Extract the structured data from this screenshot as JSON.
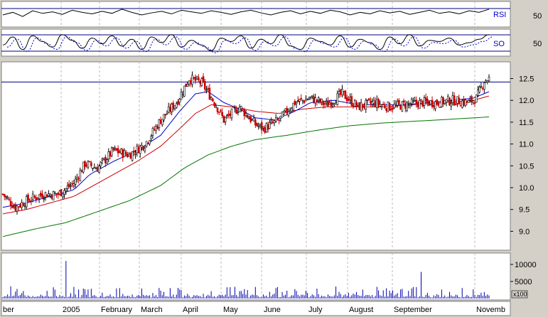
{
  "chart_data": [
    {
      "type": "line",
      "panel": "rsi",
      "label": "RSI",
      "yticks": [
        50
      ],
      "series": [
        {
          "values": [
            55,
            60,
            52,
            63,
            58,
            61,
            56,
            64,
            60,
            57,
            62,
            58,
            66,
            60,
            55,
            59,
            62,
            57,
            64,
            61,
            58,
            63,
            60,
            56,
            61,
            64,
            59,
            55,
            60,
            63,
            57,
            62,
            58,
            64,
            61,
            55,
            60,
            57,
            63,
            59,
            62,
            56,
            60,
            64,
            58,
            61,
            57,
            63,
            60,
            66
          ]
        }
      ]
    },
    {
      "type": "line",
      "panel": "stochastic",
      "label": "SO",
      "yticks": [
        50
      ],
      "series": [
        {
          "values": [
            40,
            75,
            20,
            80,
            55,
            30,
            85,
            60,
            25,
            70,
            45,
            80,
            35,
            65,
            20,
            75,
            50,
            85,
            30,
            60,
            40,
            15,
            70,
            55,
            80,
            25,
            65,
            45,
            85,
            35,
            20,
            70,
            55,
            40,
            80,
            30,
            65,
            50,
            20,
            75,
            45,
            85,
            35,
            60,
            55,
            70,
            40,
            50,
            65,
            85
          ]
        }
      ]
    },
    {
      "type": "candlestick",
      "panel": "price",
      "x_labels": [
        "ber",
        "2005",
        "February",
        "March",
        "April",
        "May",
        "June",
        "July",
        "August",
        "September",
        "Novemb"
      ],
      "y_ticks": [
        9.0,
        9.5,
        10.0,
        10.5,
        11.0,
        11.5,
        12.0,
        12.5
      ],
      "ylim": [
        8.6,
        12.85
      ],
      "horizontal_line": 12.42,
      "close_path": [
        [
          0,
          9.85
        ],
        [
          8,
          9.55
        ],
        [
          15,
          9.7
        ],
        [
          25,
          9.85
        ],
        [
          35,
          9.85
        ],
        [
          45,
          10.1
        ],
        [
          52,
          10.55
        ],
        [
          60,
          10.45
        ],
        [
          70,
          10.85
        ],
        [
          80,
          10.75
        ],
        [
          90,
          11.0
        ],
        [
          100,
          11.55
        ],
        [
          110,
          11.95
        ],
        [
          118,
          12.5
        ],
        [
          126,
          12.4
        ],
        [
          135,
          11.9
        ],
        [
          140,
          11.55
        ],
        [
          150,
          11.85
        ],
        [
          160,
          11.45
        ],
        [
          165,
          11.35
        ],
        [
          175,
          11.55
        ],
        [
          185,
          11.95
        ],
        [
          195,
          12.05
        ],
        [
          205,
          11.9
        ],
        [
          215,
          12.15
        ],
        [
          225,
          11.85
        ],
        [
          235,
          11.95
        ],
        [
          245,
          11.85
        ],
        [
          255,
          11.9
        ],
        [
          265,
          11.95
        ],
        [
          275,
          11.95
        ],
        [
          285,
          12.0
        ],
        [
          295,
          11.95
        ],
        [
          300,
          12.05
        ],
        [
          305,
          12.45
        ],
        [
          308,
          12.5
        ]
      ],
      "ma_short": [
        [
          0,
          9.55
        ],
        [
          15,
          9.65
        ],
        [
          30,
          9.8
        ],
        [
          45,
          9.95
        ],
        [
          55,
          10.3
        ],
        [
          70,
          10.6
        ],
        [
          85,
          10.85
        ],
        [
          100,
          11.2
        ],
        [
          112,
          11.75
        ],
        [
          122,
          12.15
        ],
        [
          130,
          12.2
        ],
        [
          140,
          11.95
        ],
        [
          150,
          11.8
        ],
        [
          160,
          11.6
        ],
        [
          172,
          11.55
        ],
        [
          185,
          11.75
        ],
        [
          195,
          11.95
        ],
        [
          210,
          12.0
        ],
        [
          225,
          11.9
        ],
        [
          240,
          11.9
        ],
        [
          255,
          11.9
        ],
        [
          270,
          11.95
        ],
        [
          285,
          12.0
        ],
        [
          298,
          12.05
        ],
        [
          308,
          12.2
        ]
      ],
      "ma_medium": [
        [
          0,
          9.4
        ],
        [
          15,
          9.5
        ],
        [
          30,
          9.65
        ],
        [
          45,
          9.8
        ],
        [
          55,
          10.0
        ],
        [
          70,
          10.3
        ],
        [
          85,
          10.6
        ],
        [
          100,
          10.95
        ],
        [
          112,
          11.35
        ],
        [
          122,
          11.7
        ],
        [
          132,
          11.9
        ],
        [
          145,
          11.85
        ],
        [
          160,
          11.75
        ],
        [
          175,
          11.7
        ],
        [
          190,
          11.8
        ],
        [
          205,
          11.85
        ],
        [
          220,
          11.85
        ],
        [
          240,
          11.85
        ],
        [
          260,
          11.9
        ],
        [
          280,
          11.95
        ],
        [
          298,
          12.0
        ],
        [
          308,
          12.1
        ]
      ],
      "ma_long": [
        [
          0,
          8.88
        ],
        [
          20,
          9.05
        ],
        [
          40,
          9.2
        ],
        [
          60,
          9.45
        ],
        [
          80,
          9.7
        ],
        [
          100,
          10.05
        ],
        [
          115,
          10.45
        ],
        [
          130,
          10.75
        ],
        [
          145,
          10.95
        ],
        [
          160,
          11.1
        ],
        [
          180,
          11.2
        ],
        [
          200,
          11.32
        ],
        [
          220,
          11.42
        ],
        [
          240,
          11.48
        ],
        [
          260,
          11.52
        ],
        [
          280,
          11.56
        ],
        [
          308,
          11.62
        ]
      ],
      "colors": {
        "up": "#000000",
        "down": "#cc0000",
        "ma_short": "#0000cc",
        "ma_medium": "#cc0000",
        "ma_long": "#007700",
        "hline": "#000080"
      }
    },
    {
      "type": "bar",
      "panel": "volume",
      "y_ticks": [
        5000,
        10000
      ],
      "y_unit": "x100",
      "highlight_values": [
        {
          "x": 40,
          "v": 11000
        },
        {
          "x": 265,
          "v": 7800
        }
      ]
    }
  ]
}
